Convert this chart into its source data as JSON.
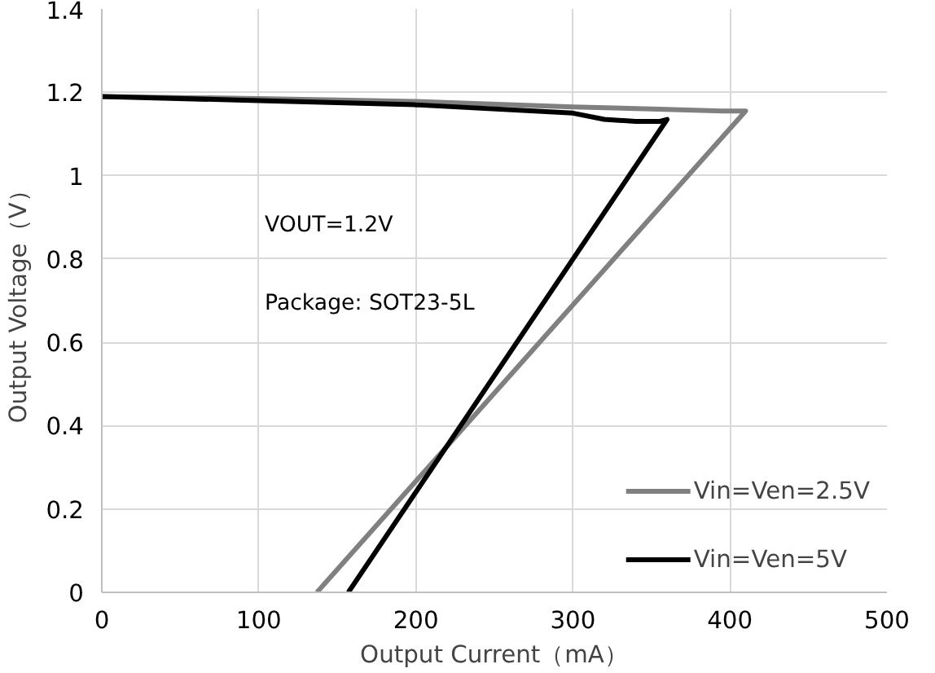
{
  "chart_data": {
    "type": "line",
    "xlabel": "Output Current（mA）",
    "ylabel": "Output Voltage（V）",
    "xlim": [
      0,
      500
    ],
    "xticks": [
      0,
      100,
      200,
      300,
      400,
      500
    ],
    "ylim": [
      0,
      1.4
    ],
    "yticks": [
      0,
      0.2,
      0.4,
      0.6,
      0.8,
      1,
      1.2,
      1.4
    ],
    "grid": true,
    "legend": "bottom right",
    "line_style": "solid",
    "marker": "none",
    "annotations": [
      "VOUT=1.2V",
      "Package: SOT23-5L"
    ],
    "series": [
      {
        "name": "Vin=Ven=2.5V",
        "color": "#808080",
        "x": [
          0,
          100,
          200,
          300,
          350,
          395,
          410,
          137
        ],
        "values": [
          1.19,
          1.185,
          1.178,
          1.165,
          1.16,
          1.155,
          1.155,
          0
        ]
      },
      {
        "name": "Vin=Ven=5V",
        "color": "#000000",
        "x": [
          0,
          100,
          200,
          300,
          320,
          340,
          355,
          360,
          157
        ],
        "values": [
          1.19,
          1.18,
          1.17,
          1.15,
          1.135,
          1.13,
          1.13,
          1.135,
          0
        ]
      }
    ]
  }
}
